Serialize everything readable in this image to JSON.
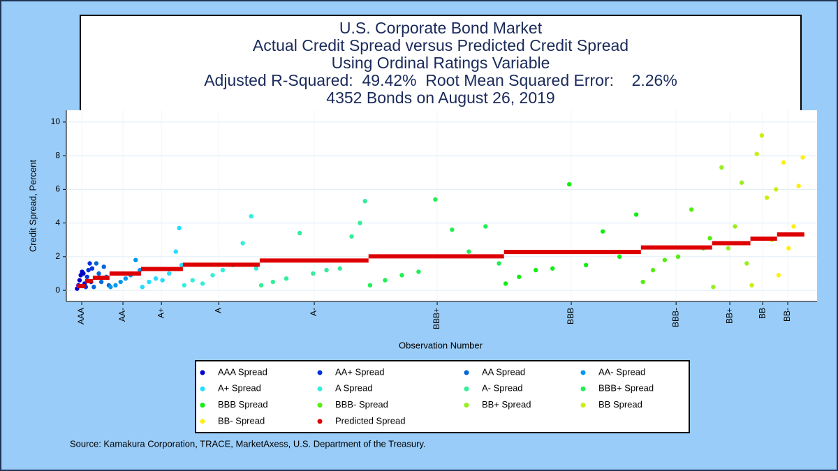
{
  "chart_data": {
    "type": "scatter",
    "title": "U.S. Corporate Bond Market",
    "subtitle": [
      "Actual Credit Spread versus Predicted Credit Spread",
      "Using Ordinal Ratings Variable",
      "Adjusted R-Squared:  49.42%  Root Mean Squared Error:    2.26%",
      "4352 Bonds on August 26, 2019"
    ],
    "x_label": "Observation Number",
    "y_label": "Credit Spread, Percent",
    "source": "Source: Kamakura Corporation, TRACE, MarketAxess, U.S. Department of the Treasury.",
    "xlim": [
      -54,
      4430
    ],
    "ylim": [
      -0.66,
      10.7
    ],
    "yticks": [
      0,
      2,
      4,
      6,
      8,
      10
    ],
    "xticks": [
      {
        "value": 38,
        "label": "AAA"
      },
      {
        "value": 284,
        "label": "AA-"
      },
      {
        "value": 514,
        "label": "A+"
      },
      {
        "value": 856,
        "label": "A"
      },
      {
        "value": 1427,
        "label": "A-"
      },
      {
        "value": 2161,
        "label": "BBB+"
      },
      {
        "value": 2962,
        "label": "BBB"
      },
      {
        "value": 3588,
        "label": "BBB-"
      },
      {
        "value": 3909,
        "label": "BB+"
      },
      {
        "value": 4105,
        "label": "BB"
      },
      {
        "value": 4255,
        "label": "BB-"
      }
    ],
    "grid": true,
    "series": [
      {
        "name": "AAA Spread",
        "color": "#0000cc",
        "x": [
          10,
          18,
          25,
          32,
          40,
          48,
          55
        ],
        "values": [
          0.1,
          0.3,
          0.6,
          0.9,
          1.1,
          1.0,
          0.4
        ]
      },
      {
        "name": "AA+ Spread",
        "color": "#0033dd",
        "x": [
          62,
          70,
          78,
          86,
          94,
          100
        ],
        "values": [
          0.2,
          0.8,
          1.2,
          1.6,
          0.5,
          1.3
        ]
      },
      {
        "name": "AA Spread",
        "color": "#0066dd",
        "x": [
          110,
          125,
          140,
          155,
          170,
          185,
          200
        ],
        "values": [
          0.2,
          1.6,
          1.0,
          0.5,
          1.4,
          0.8,
          0.3
        ]
      },
      {
        "name": "AA- Spread",
        "color": "#0099ee",
        "x": [
          210,
          240,
          270,
          300,
          330,
          360,
          385
        ],
        "values": [
          0.2,
          0.3,
          0.5,
          0.7,
          0.9,
          1.8,
          1.2
        ]
      },
      {
        "name": "A+ Spread",
        "color": "#22ddff",
        "x": [
          400,
          440,
          480,
          520,
          560,
          600,
          620,
          635
        ],
        "values": [
          0.2,
          0.5,
          0.7,
          0.6,
          1.0,
          2.3,
          3.7,
          1.5
        ]
      },
      {
        "name": "A Spread",
        "color": "#33eedd",
        "x": [
          650,
          700,
          760,
          820,
          880,
          940,
          1000,
          1050,
          1080
        ],
        "values": [
          0.3,
          0.6,
          0.4,
          0.9,
          1.2,
          1.5,
          2.8,
          4.4,
          1.3
        ]
      },
      {
        "name": "A- Spread",
        "color": "#33ee99",
        "x": [
          1110,
          1180,
          1260,
          1340,
          1420,
          1500,
          1580,
          1650,
          1700,
          1730
        ],
        "values": [
          0.3,
          0.5,
          0.7,
          3.4,
          1.0,
          1.2,
          1.3,
          3.2,
          4.0,
          5.3
        ]
      },
      {
        "name": "BBB+ Spread",
        "color": "#22ee55",
        "x": [
          1760,
          1850,
          1950,
          2050,
          2150,
          2250,
          2350,
          2450,
          2530
        ],
        "values": [
          0.3,
          0.6,
          0.9,
          1.1,
          5.4,
          3.6,
          2.3,
          3.8,
          1.6
        ]
      },
      {
        "name": "BBB Spread",
        "color": "#11ee11",
        "x": [
          2570,
          2650,
          2750,
          2850,
          2950,
          3050,
          3150,
          3250,
          3350
        ],
        "values": [
          0.4,
          0.8,
          1.2,
          1.3,
          6.3,
          1.5,
          3.5,
          2.0,
          4.5
        ]
      },
      {
        "name": "BBB- Spread",
        "color": "#55ee11",
        "x": [
          3390,
          3450,
          3520,
          3600,
          3680,
          3750,
          3790
        ],
        "values": [
          0.5,
          1.2,
          1.8,
          2.0,
          4.8,
          2.5,
          3.1
        ]
      },
      {
        "name": "BB+ Spread",
        "color": "#99ee22",
        "x": [
          3810,
          3860,
          3900,
          3940,
          3980,
          4010
        ],
        "values": [
          0.2,
          7.3,
          2.5,
          3.8,
          6.4,
          1.6
        ]
      },
      {
        "name": "BB Spread",
        "color": "#ccee11",
        "x": [
          4040,
          4070,
          4100,
          4130,
          4160,
          4185
        ],
        "values": [
          0.3,
          8.1,
          9.2,
          5.5,
          3.0,
          6.0
        ]
      },
      {
        "name": "BB- Spread",
        "color": "#ffee11",
        "x": [
          4200,
          4230,
          4260,
          4290,
          4320,
          4345
        ],
        "values": [
          0.9,
          7.6,
          2.5,
          3.8,
          6.2,
          7.9
        ]
      },
      {
        "name": "Predicted Spread",
        "color": "#dd0000",
        "type": "step",
        "bins": [
          8,
          58,
          104,
          204,
          392,
          642,
          1101,
          1751,
          2560,
          3378,
          3803,
          4032,
          4191,
          4354
        ],
        "values": [
          0.25,
          0.55,
          0.75,
          1.0,
          1.27,
          1.52,
          1.77,
          2.02,
          2.28,
          2.55,
          2.8,
          3.07,
          3.32
        ]
      }
    ]
  }
}
